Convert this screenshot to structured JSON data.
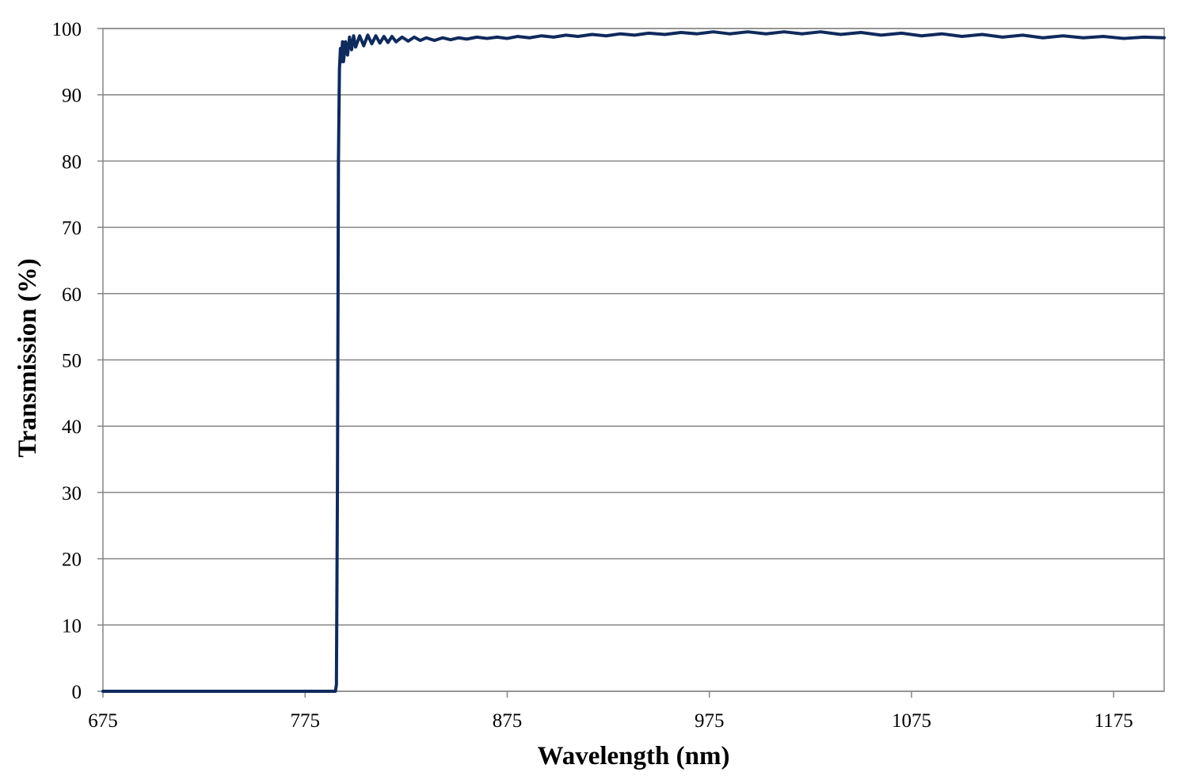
{
  "chart_data": {
    "type": "line",
    "title": "",
    "xlabel": "Wavelength (nm)",
    "ylabel": "Transmission (%)",
    "xlim": [
      675,
      1200
    ],
    "ylim": [
      0,
      100
    ],
    "x_ticks": [
      675,
      775,
      875,
      975,
      1075,
      1175
    ],
    "y_ticks": [
      0,
      10,
      20,
      30,
      40,
      50,
      60,
      70,
      80,
      90,
      100
    ],
    "grid": "horizontal",
    "series": [
      {
        "color": "#0f2a5c",
        "x": [
          675,
          700,
          725,
          750,
          775,
          790,
          790.5,
          791,
          791.5,
          792,
          792.5,
          793,
          793.5,
          794,
          795,
          796,
          797,
          798,
          799,
          800,
          802,
          804,
          806,
          808,
          810,
          812,
          814,
          816,
          818,
          820,
          823,
          826,
          829,
          832,
          835,
          839,
          843,
          847,
          851,
          855,
          860,
          865,
          870,
          875,
          880,
          886,
          892,
          898,
          904,
          910,
          917,
          924,
          931,
          938,
          945,
          953,
          961,
          969,
          977,
          985,
          994,
          1003,
          1012,
          1021,
          1030,
          1040,
          1050,
          1060,
          1070,
          1080,
          1090,
          1100,
          1110,
          1120,
          1130,
          1140,
          1150,
          1160,
          1170,
          1180,
          1190,
          1200
        ],
        "y": [
          0,
          0,
          0,
          0,
          0,
          0,
          1,
          30,
          80,
          94,
          97,
          95,
          98,
          95,
          98,
          96,
          98.7,
          96.8,
          98.9,
          97.2,
          98.9,
          97.4,
          99,
          97.7,
          98.9,
          97.8,
          98.8,
          97.9,
          98.8,
          98,
          98.7,
          98.1,
          98.7,
          98.2,
          98.6,
          98.2,
          98.6,
          98.3,
          98.6,
          98.4,
          98.7,
          98.5,
          98.7,
          98.5,
          98.8,
          98.6,
          98.9,
          98.7,
          99,
          98.8,
          99.1,
          98.9,
          99.2,
          99,
          99.3,
          99.1,
          99.4,
          99.2,
          99.5,
          99.2,
          99.5,
          99.2,
          99.5,
          99.2,
          99.5,
          99.1,
          99.4,
          99,
          99.3,
          98.9,
          99.2,
          98.8,
          99.1,
          98.7,
          99,
          98.6,
          98.9,
          98.6,
          98.8,
          98.5,
          98.7,
          98.6
        ]
      }
    ]
  }
}
